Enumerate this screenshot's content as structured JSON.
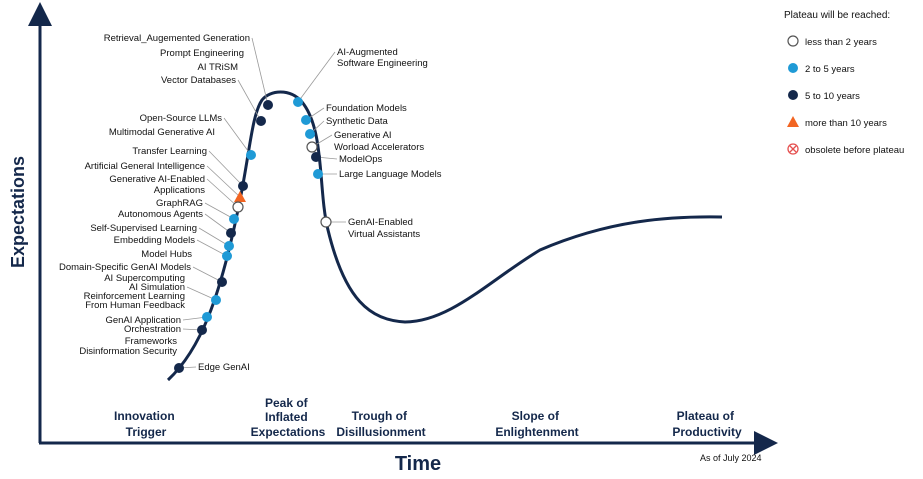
{
  "axes": {
    "y_label": "Expectations",
    "x_label": "Time"
  },
  "phases": [
    {
      "line1": "Innovation",
      "line2": "Trigger",
      "line3": ""
    },
    {
      "line1": "Peak of",
      "line2": "Inflated",
      "line3": "Expectations"
    },
    {
      "line1": "Trough of",
      "line2": "Disillusionment",
      "line3": ""
    },
    {
      "line1": "Slope of",
      "line2": "Enlightenment",
      "line3": ""
    },
    {
      "line1": "Plateau of",
      "line2": "Productivity",
      "line3": ""
    }
  ],
  "legend": {
    "title": "Plateau will be reached:",
    "items": [
      {
        "key": "lt2",
        "label": "less than 2 years",
        "marker": "open-circle",
        "color": "#ffffff"
      },
      {
        "key": "2to5",
        "label": "2 to 5 years",
        "marker": "circle",
        "color": "#1f9ad6"
      },
      {
        "key": "5to10",
        "label": "5 to 10 years",
        "marker": "circle",
        "color": "#14284b"
      },
      {
        "key": "gt10",
        "label": "more than 10 years",
        "marker": "triangle",
        "color": "#f26522"
      },
      {
        "key": "obsolete",
        "label": "obsolete before plateau",
        "marker": "crossed-circle",
        "color": "#e5504f"
      }
    ]
  },
  "footnote": "As of July 2024",
  "colors": {
    "curve": "#14284b",
    "axis": "#14284b",
    "dark": "#14284b",
    "blue": "#1f9ad6",
    "orange": "#f26522",
    "leader": "#9a9a9a",
    "text": "#111111"
  },
  "technologies": [
    {
      "label": "Retrieval_Augemented Generation",
      "category": "5to10"
    },
    {
      "label": "Prompt Engineering",
      "category": "5to10"
    },
    {
      "label": "AI TRiSM",
      "category": "5to10"
    },
    {
      "label": "Vector Databases",
      "category": "5to10"
    },
    {
      "label": "Open-Source LLMs",
      "category": "2to5"
    },
    {
      "label": "Multimodal Generative AI",
      "category": "2to5"
    },
    {
      "label": "Transfer Learning",
      "category": "5to10"
    },
    {
      "label": "Artificial General Intelligence",
      "category": "gt10"
    },
    {
      "label": "Generative AI-Enabled",
      "category": "lt2"
    },
    {
      "label": "Applications",
      "category": "lt2"
    },
    {
      "label": "GraphRAG",
      "category": "2to5"
    },
    {
      "label": "Autonomous Agents",
      "category": "5to10"
    },
    {
      "label": "Self-Supervised Learning",
      "category": "2to5"
    },
    {
      "label": "Embedding Models",
      "category": "2to5"
    },
    {
      "label": "Model Hubs",
      "category": "2to5"
    },
    {
      "label": "Domain-Specific GenAI Models",
      "category": "5to10"
    },
    {
      "label": "AI Supercomputing",
      "category": "5to10"
    },
    {
      "label": "AI Simulation",
      "category": "2to5"
    },
    {
      "label": "Reinforcement Learning",
      "category": "5to10"
    },
    {
      "label": "From Human Feedback",
      "category": "5to10"
    },
    {
      "label": "GenAI Application",
      "category": "2to5"
    },
    {
      "label": "Orchestration",
      "category": "5to10"
    },
    {
      "label": "Frameworks",
      "category": "5to10"
    },
    {
      "label": "Disinformation Security",
      "category": "5to10"
    },
    {
      "label": "Edge GenAI",
      "category": "5to10"
    },
    {
      "label": "AI-Augmented",
      "category": "2to5"
    },
    {
      "label": "Software Engineering",
      "category": "2to5"
    },
    {
      "label": "Foundation Models",
      "category": "2to5"
    },
    {
      "label": "Synthetic Data",
      "category": "2to5"
    },
    {
      "label": "Generative AI",
      "category": "lt2"
    },
    {
      "label": "Worload Accelerators",
      "category": "lt2"
    },
    {
      "label": "ModelOps",
      "category": "5to10"
    },
    {
      "label": "Large Language Models",
      "category": "2to5"
    },
    {
      "label": "GenAI-Enabled",
      "category": "lt2"
    },
    {
      "label": "Virtual Assistants",
      "category": "lt2"
    }
  ]
}
